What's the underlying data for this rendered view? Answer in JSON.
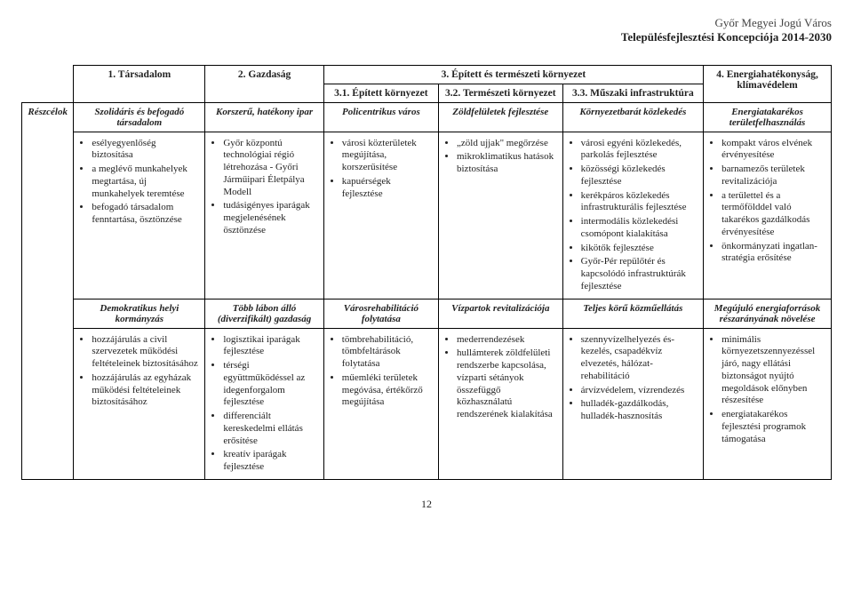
{
  "header": {
    "line1": "Győr Megyei Jogú Város",
    "line2": "Településfejlesztési Koncepciója 2014-2030"
  },
  "rowLabel": "Részcélok",
  "pageNumber": "12",
  "columns": {
    "c1": {
      "title": "1. Társadalom"
    },
    "c2": {
      "title": "2. Gazdaság"
    },
    "c3": {
      "groupTitle": "3. Épített és természeti környezet",
      "s1": "3.1. Épített környezet",
      "s2": "3.2. Természeti környezet",
      "s3": "3.3. Műszaki infrastruktúra"
    },
    "c4": {
      "title": "4. Energiahatékonyság, klímavédelem"
    }
  },
  "block1": {
    "sub1": "Szolidáris és befogadó társadalom",
    "sub2": "Korszerű, hatékony ipar",
    "sub31": "Policentrikus város",
    "sub32": "Zöldfelületek fejlesztése",
    "sub33": "Környezetbarát közlekedés",
    "sub4": "Energiatakarékos területfelhasználás",
    "cells": {
      "c1": [
        "esélyegyenlőség biztosítása",
        "a meglévő munkahelyek megtartása, új munkahelyek teremtése",
        "befogadó társadalom fenntartása, ösztönzése"
      ],
      "c2": [
        "Győr központú technológiai régió létrehozása - Győri Járműipari Életpálya Modell",
        "tudásigényes iparágak megjelenésének ösztönzése"
      ],
      "c31": [
        "városi közterületek megújítása, korszerűsítése",
        "kapuérségek fejlesztése"
      ],
      "c32": [
        "„zöld ujjak\" megőrzése",
        "mikroklimatikus hatások biztosítása"
      ],
      "c33": [
        "városi egyéni közlekedés, parkolás fejlesztése",
        "közösségi közlekedés fejlesztése",
        "kerékpáros közlekedés infrastrukturális fejlesztése",
        "intermodális közlekedési csomópont kialakítása",
        "kikötők fejlesztése",
        "Győr-Pér repülőtér és kapcsolódó infrastruktúrák fejlesztése"
      ],
      "c4": [
        "kompakt város elvének érvényesítése",
        "barnamezős területek revitalizációja",
        "a területtel és a termőfölddel való takarékos gazdálkodás érvényesítése",
        "önkormányzati ingatlan-stratégia erősítése"
      ]
    }
  },
  "block2": {
    "sub1": "Demokratikus helyi kormányzás",
    "sub2": "Több lábon álló (diverzifikált) gazdaság",
    "sub31": "Városrehabilitáció folytatása",
    "sub32": "Vízpartok revitalizációja",
    "sub33": "Teljes körű közműellátás",
    "sub4": "Megújuló energiaforrások részarányának növelése",
    "cells": {
      "c1": [
        "hozzájárulás a civil szervezetek működési feltételeinek biztosításához",
        "hozzájárulás az egyházak működési feltételeinek biztosításához"
      ],
      "c2": [
        "logisztikai iparágak fejlesztése",
        "térségi együttműködéssel az idegenforgalom fejlesztése",
        "differenciált kereskedelmi ellátás erősítése",
        "kreatív iparágak fejlesztése"
      ],
      "c31": [
        "tömbrehabilitáció, tömbfeltárások folytatása",
        "műemléki területek megóvása, értékőrző megújítása"
      ],
      "c32": [
        "mederrendezések",
        "hullámterek zöldfelületi rendszerbe kapcsolása, vízparti sétányok összefüggő közhasználatú rendszerének kialakítása"
      ],
      "c33": [
        "szennyvízelhelyezés és-kezelés, csapadékvíz elvezetés, hálózat-rehabilitáció",
        "árvízvédelem, vízrendezés",
        "hulladék-gazdálkodás, hulladék-hasznosítás"
      ],
      "c4": [
        "minimális környezetszennyezéssel járó, nagy ellátási biztonságot nyújtó megoldások előnyben részesítése",
        "energiatakarékos fejlesztési programok támogatása"
      ]
    }
  }
}
